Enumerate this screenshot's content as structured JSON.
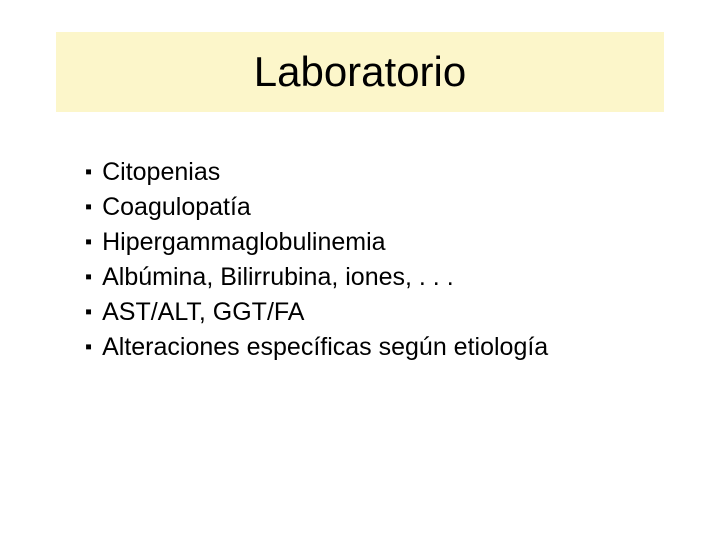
{
  "slide": {
    "title": "Laboratorio",
    "title_fontsize": 42,
    "title_color": "#000000",
    "title_background": "#fcf6ca",
    "bullet_marker": "▪",
    "bullet_fontsize": 25,
    "bullet_line_height": 35,
    "bullet_text_color": "#000000",
    "items": [
      {
        "text": "Citopenias"
      },
      {
        "text": "Coagulopatía"
      },
      {
        "text": "Hipergammaglobulinemia"
      },
      {
        "text": "Albúmina, Bilirrubina, iones, . . ."
      },
      {
        "text": "AST/ALT, GGT/FA"
      },
      {
        "text": "Alteraciones específicas según etiología"
      }
    ],
    "background_color": "#ffffff"
  }
}
